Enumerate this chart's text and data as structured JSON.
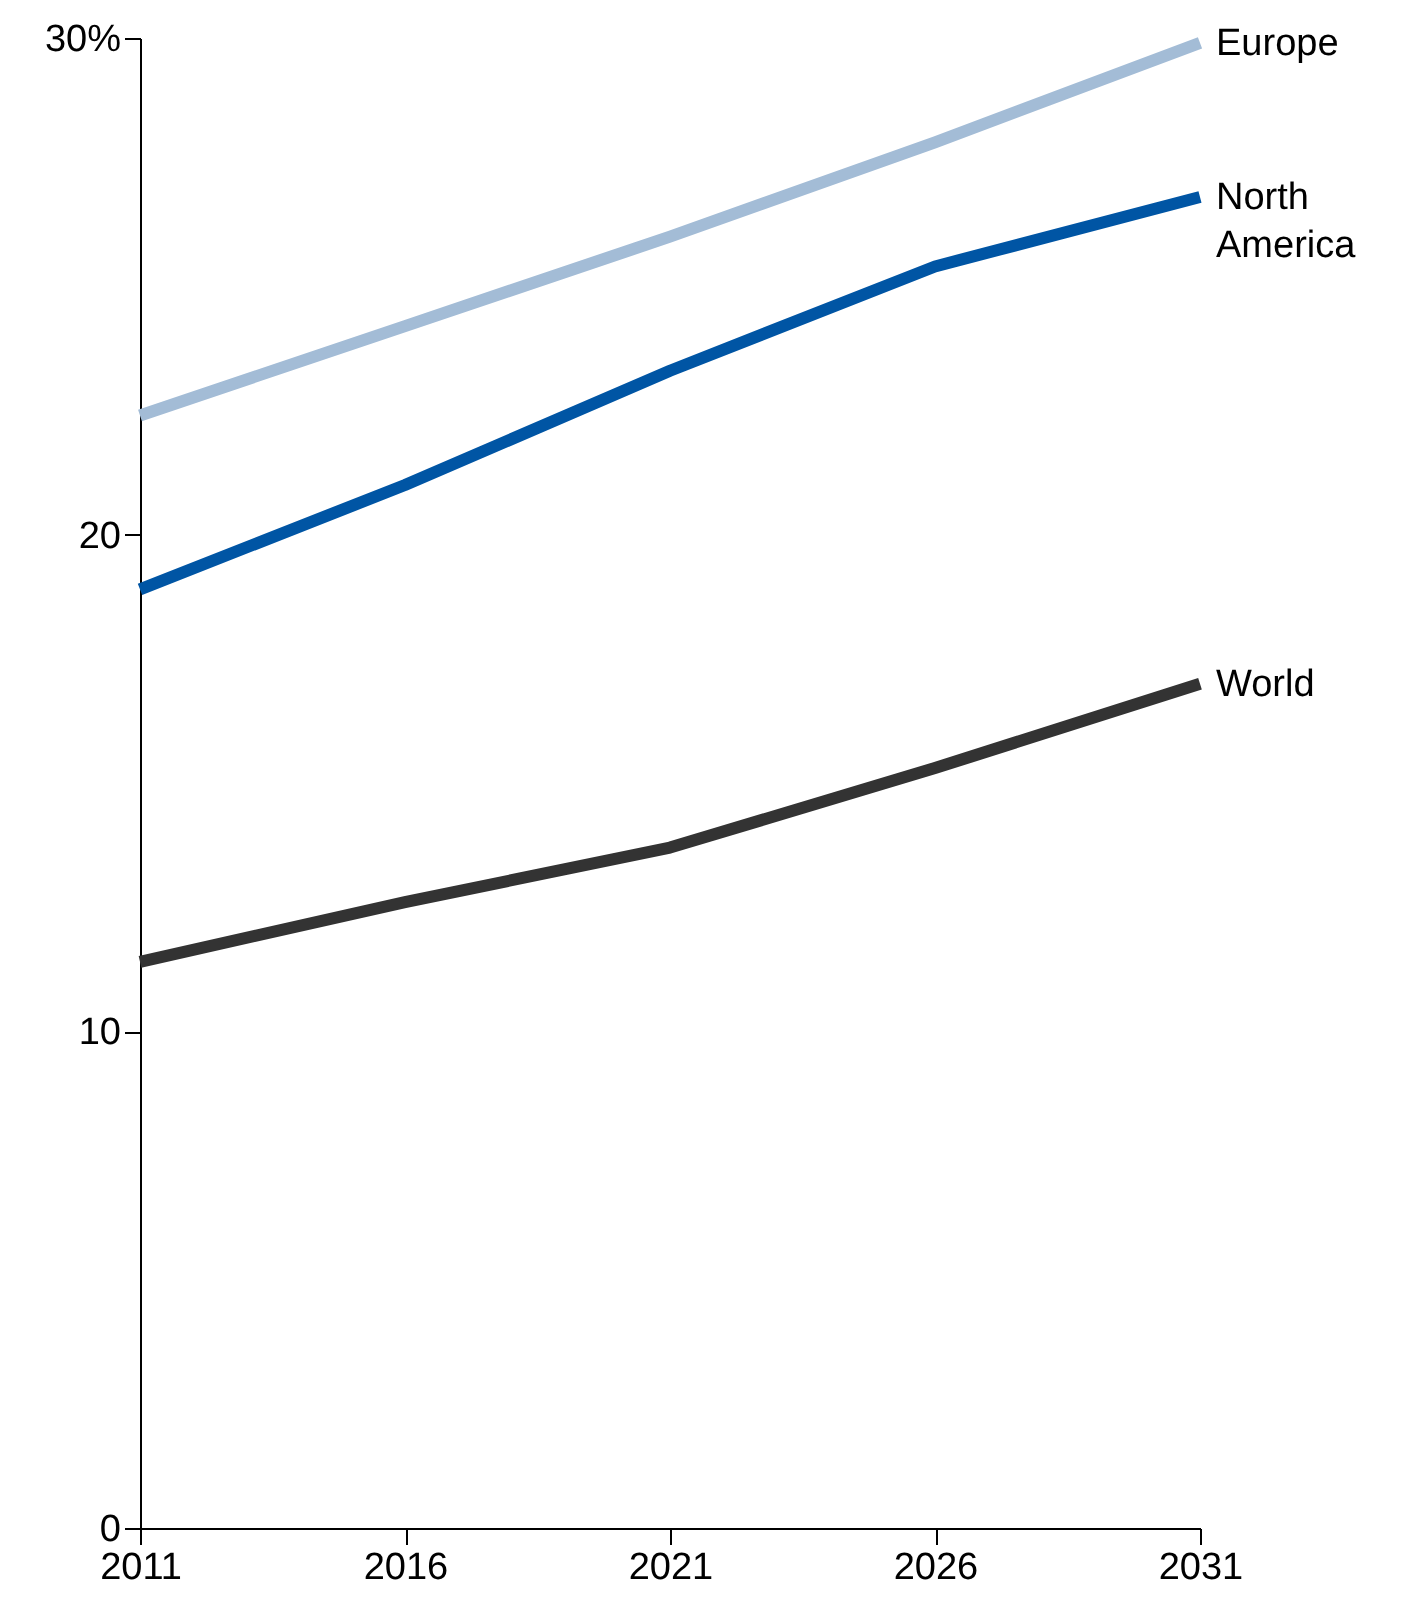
{
  "chart_data": {
    "type": "line",
    "x": [
      2011,
      2016,
      2021,
      2026,
      2031
    ],
    "series": [
      {
        "name": "Europe",
        "color": "#a3bcd6",
        "values": [
          22.4,
          24.2,
          26.0,
          27.9,
          29.9
        ]
      },
      {
        "name": "North America",
        "color": "#0055a4",
        "values": [
          18.9,
          21.0,
          23.3,
          25.4,
          26.8
        ]
      },
      {
        "name": "World",
        "color": "#333333",
        "values": [
          11.4,
          12.6,
          13.7,
          15.3,
          17.0
        ]
      }
    ],
    "xlim": [
      2011,
      2031
    ],
    "xticks": [
      2011,
      2016,
      2021,
      2026,
      2031
    ],
    "ylim": [
      0,
      30
    ],
    "yticks": [
      0,
      10,
      20,
      {
        "value": 30,
        "label": "30%"
      }
    ],
    "grid": false,
    "marker": "none",
    "line_style": "solid"
  }
}
